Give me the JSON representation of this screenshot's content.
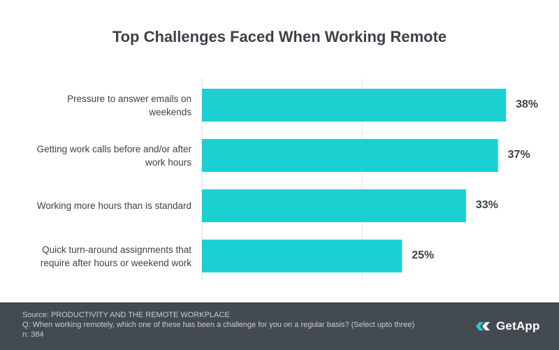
{
  "chart_data": {
    "type": "bar",
    "orientation": "horizontal",
    "title": "Top Challenges Faced When Working Remote",
    "categories": [
      "Pressure to answer emails on weekends",
      "Getting work calls before and/or after work hours",
      "Working more hours than is standard",
      "Quick turn-around assignments that require after hours or weekend work"
    ],
    "values": [
      38,
      37,
      33,
      25
    ],
    "value_labels": [
      "38%",
      "37%",
      "33%",
      "25%"
    ],
    "xlim": [
      0,
      40
    ],
    "grid": true,
    "bar_color": "#1bd0d0"
  },
  "footer": {
    "source": "Source: PRODUCTIVITY AND THE REMOTE WORKPLACE",
    "question": "Q: When working remotely, which one of these has been a challenge for you on a regular basis? (Select upto three)",
    "n": "n: 384",
    "logo_text": "GetApp",
    "background": "#444a52"
  }
}
